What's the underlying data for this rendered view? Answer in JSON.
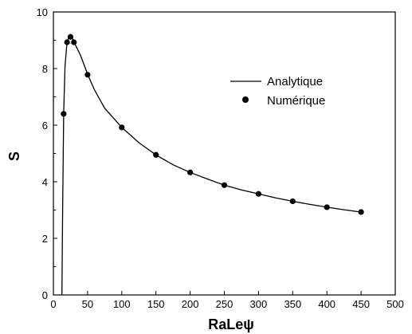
{
  "chart_data": {
    "type": "line",
    "title": "",
    "xlabel": "RaLeψ",
    "ylabel": "S",
    "xlim": [
      0,
      500
    ],
    "ylim": [
      0,
      10
    ],
    "x_ticks": [
      "0",
      "50",
      "100",
      "150",
      "200",
      "250",
      "300",
      "350",
      "400",
      "450",
      "500"
    ],
    "y_ticks": [
      "0",
      "2",
      "4",
      "6",
      "8",
      "10"
    ],
    "grid": false,
    "legend_position": "top-right",
    "series": [
      {
        "name": "Analytique",
        "style": "line",
        "color": "#000000",
        "x": [
          12.5,
          13.5,
          15,
          17,
          20,
          23,
          25,
          28,
          30,
          35,
          40,
          50,
          60,
          75,
          100,
          125,
          150,
          175,
          200,
          225,
          250,
          275,
          300,
          325,
          350,
          375,
          400,
          425,
          450
        ],
        "y": [
          0,
          3.0,
          6.4,
          8.1,
          8.95,
          9.12,
          9.12,
          9.05,
          8.95,
          8.7,
          8.45,
          7.8,
          7.25,
          6.6,
          5.92,
          5.38,
          4.95,
          4.6,
          4.33,
          4.1,
          3.88,
          3.71,
          3.57,
          3.43,
          3.31,
          3.2,
          3.1,
          3.01,
          2.93
        ]
      },
      {
        "name": "Numérique",
        "style": "marker",
        "color": "#000000",
        "x": [
          15,
          20,
          25,
          30,
          50,
          100,
          150,
          200,
          250,
          300,
          350,
          400,
          450
        ],
        "y": [
          6.4,
          8.93,
          9.12,
          8.93,
          7.78,
          5.92,
          4.95,
          4.33,
          3.88,
          3.57,
          3.31,
          3.1,
          2.93
        ]
      }
    ]
  }
}
